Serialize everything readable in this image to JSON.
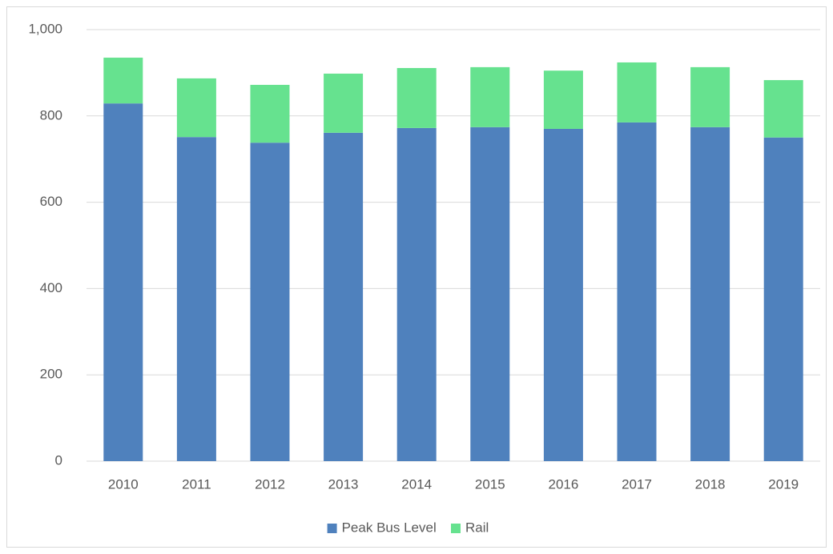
{
  "chart_data": {
    "type": "stacked_bar",
    "categories": [
      "2010",
      "2011",
      "2012",
      "2013",
      "2014",
      "2015",
      "2016",
      "2017",
      "2018",
      "2019"
    ],
    "series": [
      {
        "name": "Peak Bus Level",
        "color": "#4f81bd",
        "values": [
          829,
          751,
          738,
          761,
          772,
          774,
          770,
          785,
          774,
          750
        ]
      },
      {
        "name": "Rail",
        "color": "#66e28f",
        "values": [
          106,
          136,
          134,
          137,
          139,
          139,
          135,
          139,
          139,
          133
        ]
      }
    ],
    "ylim": [
      0,
      1000
    ],
    "yticks": [
      0,
      200,
      400,
      600,
      800,
      {
        "value": 1000,
        "label": "1,000"
      }
    ],
    "grid": true,
    "legend": "bottom"
  }
}
